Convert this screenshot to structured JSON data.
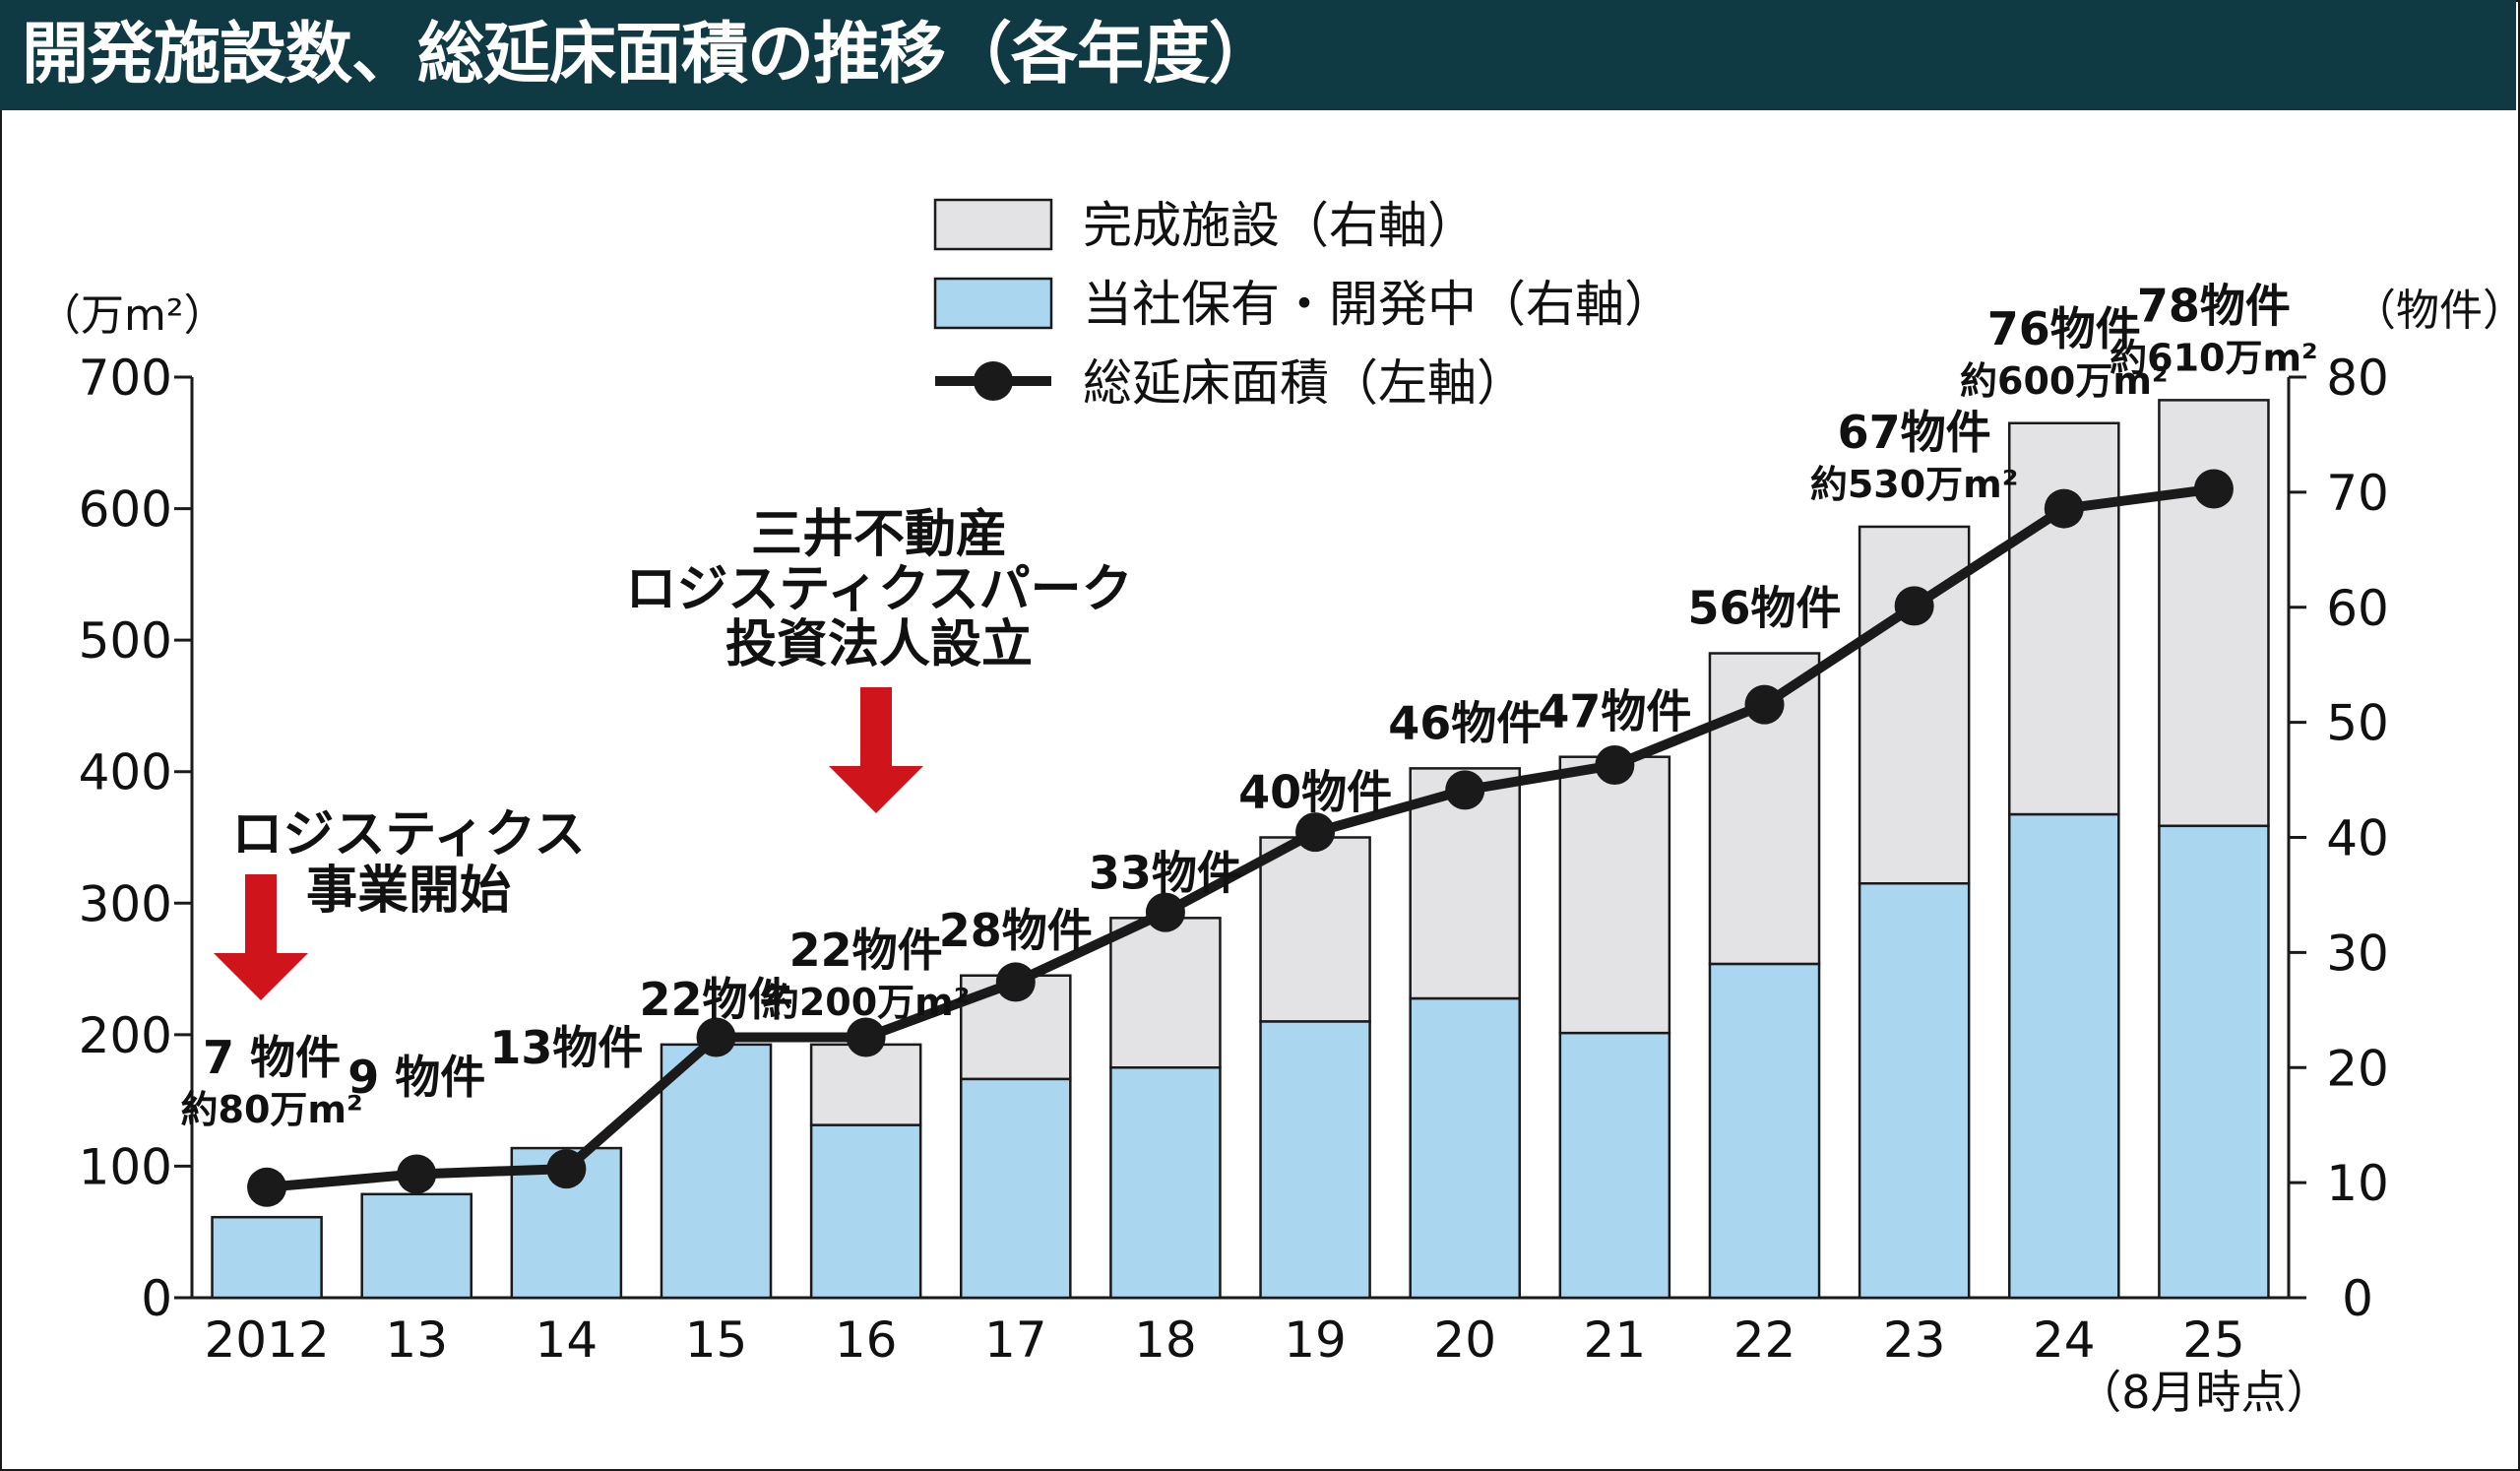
{
  "header": {
    "title": "開発施設数、総延床面積の推移（各年度）"
  },
  "colors": {
    "header_bg": "#0f3a44",
    "completed": "#e3e3e6",
    "owned": "#aad6f0",
    "line": "#1a1a1a",
    "arrow": "#d0141c",
    "axis": "#1a1a1a"
  },
  "chart_data": {
    "type": "bar+line",
    "title": "開発施設数、総延床面積の推移（各年度）",
    "categories": [
      "2012",
      "13",
      "14",
      "15",
      "16",
      "17",
      "18",
      "19",
      "20",
      "21",
      "22",
      "23",
      "24",
      "25"
    ],
    "x_note": "（8月時点）",
    "left_axis": {
      "unit_label": "（万m²）",
      "range": [
        0,
        700
      ],
      "ticks": [
        "0",
        "100",
        "200",
        "300",
        "400",
        "500",
        "600",
        "700"
      ]
    },
    "right_axis": {
      "unit_label": "（物件）",
      "range": [
        0,
        80
      ],
      "ticks": [
        "0",
        "10",
        "20",
        "30",
        "40",
        "50",
        "60",
        "70",
        "80"
      ]
    },
    "legend": [
      {
        "key": "completed",
        "label": "完成施設（右軸）"
      },
      {
        "key": "owned",
        "label": "当社保有・開発中（右軸）"
      },
      {
        "key": "floor_area",
        "label": "総延床面積（左軸）"
      }
    ],
    "series": [
      {
        "name": "当社保有・開発中（右軸）",
        "axis": "right",
        "kind": "stacked-bar",
        "values": [
          7,
          9,
          13,
          22,
          15,
          19,
          20,
          24,
          26,
          23,
          29,
          36,
          42,
          41
        ]
      },
      {
        "name": "完成施設（右軸）",
        "axis": "right",
        "kind": "stacked-bar",
        "values": [
          0,
          0,
          0,
          0,
          7,
          9,
          13,
          16,
          20,
          24,
          27,
          31,
          34,
          37
        ]
      },
      {
        "name": "総延床面積（左軸）",
        "axis": "left",
        "kind": "line",
        "values": [
          84,
          94,
          98,
          198,
          198,
          240,
          293,
          354,
          386,
          405,
          451,
          526,
          600,
          615
        ]
      }
    ],
    "bar_labels": [
      [
        "7 物件",
        "約80万m²"
      ],
      [
        "9 物件"
      ],
      [
        "13物件"
      ],
      [
        "22物件"
      ],
      [
        "22物件",
        "約200万m²"
      ],
      [
        "28物件"
      ],
      [
        "33物件"
      ],
      [
        "40物件"
      ],
      [
        "46物件"
      ],
      [
        "47物件"
      ],
      [
        "56物件"
      ],
      [
        "67物件",
        "約530万m²"
      ],
      [
        "76物件",
        "約600万m²"
      ],
      [
        "78物件",
        "約610万m²"
      ]
    ],
    "annotations": [
      {
        "lines": [
          "ロジスティクス",
          "事業開始"
        ],
        "at": "2012"
      },
      {
        "lines": [
          "三井不動産",
          "ロジスティクスパーク",
          "投資法人設立"
        ],
        "at": "16"
      }
    ]
  }
}
